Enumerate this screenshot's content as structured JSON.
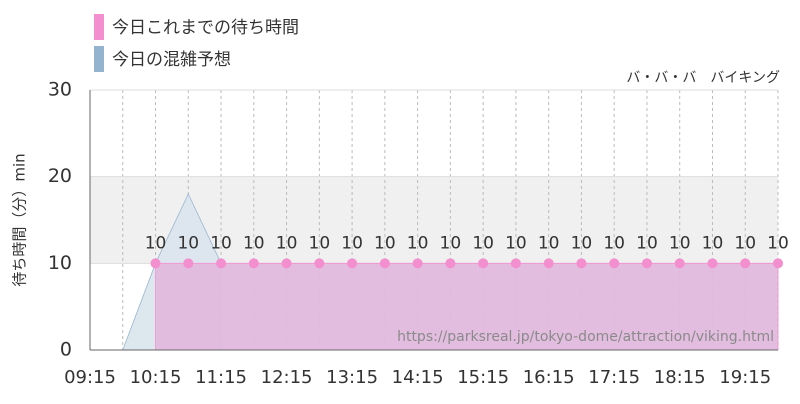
{
  "chart_data": {
    "type": "area",
    "title": "バ・バ・バ　バイキング",
    "y_label": "待ち時間（分）min",
    "watermark": "https://parksreal.jp/tokyo-dome/attraction/viking.html",
    "categories": [
      "09:15",
      null,
      "10:15",
      null,
      "11:15",
      null,
      "12:15",
      null,
      "13:15",
      null,
      "14:15",
      null,
      "15:15",
      null,
      "16:15",
      null,
      "17:15",
      null,
      "18:15",
      null,
      "19:15",
      null
    ],
    "series": [
      {
        "name": "今日これまでの待ち時間",
        "color": "#f48fcf",
        "fill": "#e2bade",
        "values": [
          null,
          null,
          10,
          10,
          10,
          10,
          10,
          10,
          10,
          10,
          10,
          10,
          10,
          10,
          10,
          10,
          10,
          10,
          10,
          10,
          10,
          10
        ],
        "value_labels": [
          null,
          null,
          "10",
          "10",
          "10",
          "10",
          "10",
          "10",
          "10",
          "10",
          "10",
          "10",
          "10",
          "10",
          "10",
          "10",
          "10",
          "10",
          "10",
          "10",
          "10",
          "10"
        ]
      },
      {
        "name": "今日の混雑予想",
        "color": "#93b3cf",
        "fill": "#dce6ee",
        "values": [
          0,
          0,
          10,
          18,
          10,
          null,
          null,
          null,
          null,
          null,
          null,
          null,
          null,
          null,
          null,
          null,
          null,
          null,
          null,
          null,
          null,
          null
        ]
      }
    ],
    "ylim": [
      0,
      30
    ],
    "yticks": [
      0,
      10,
      20,
      30
    ],
    "highlight_band": [
      10,
      20
    ],
    "grid": true
  }
}
